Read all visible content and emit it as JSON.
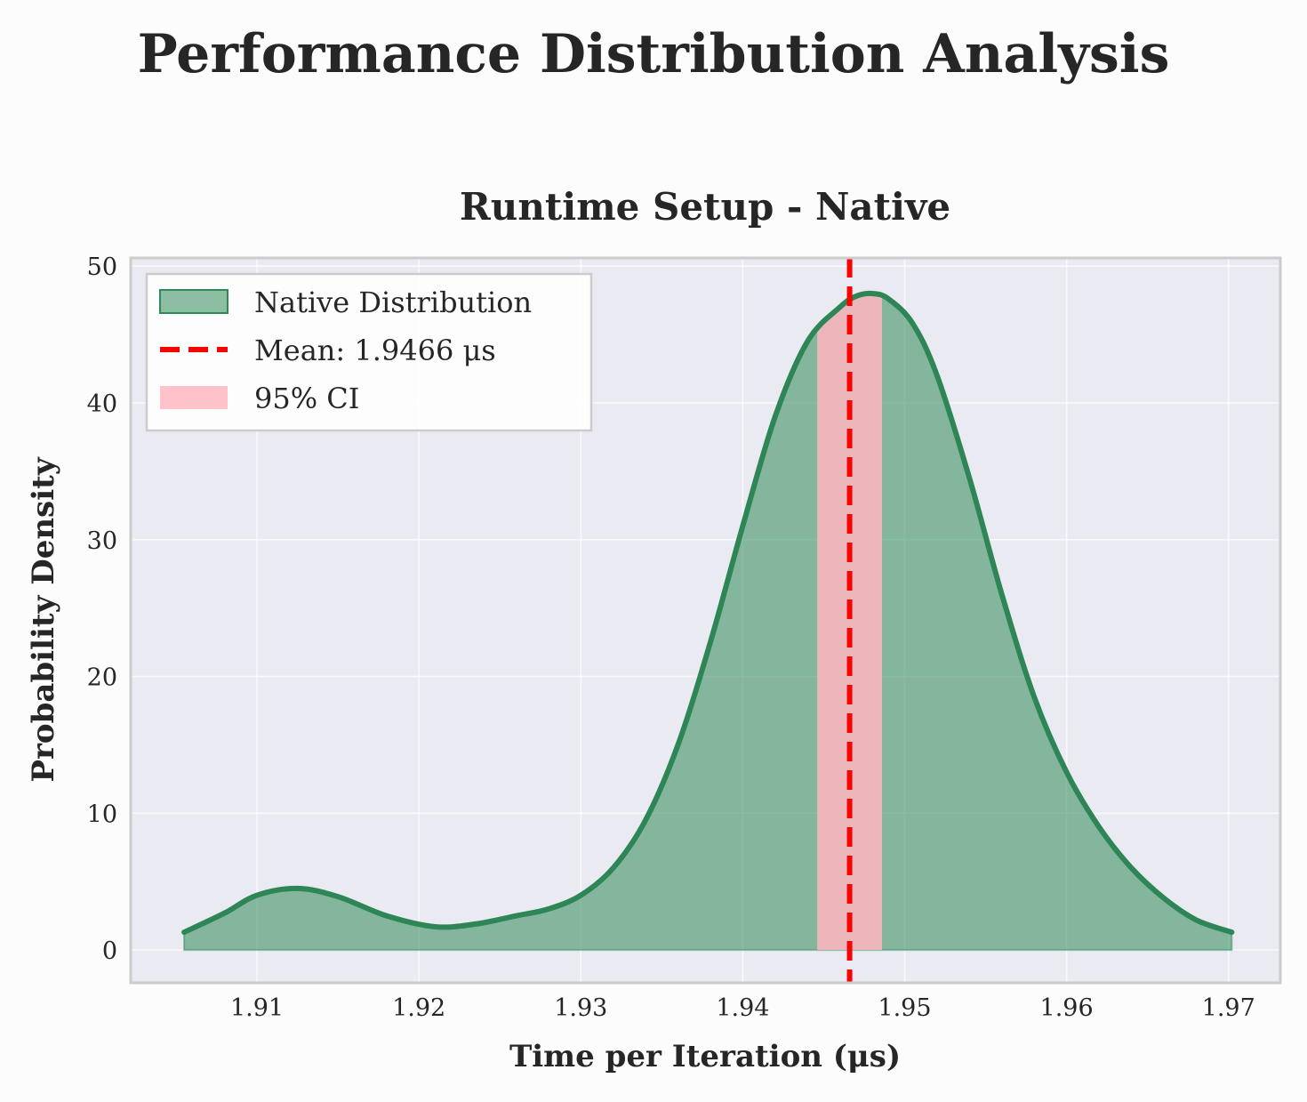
{
  "figure": {
    "suptitle": "Performance Distribution Analysis"
  },
  "chart_data": {
    "type": "area",
    "title": "Runtime Setup - Native",
    "xlabel": "Time per Iteration (μs)",
    "ylabel": "Probability Density",
    "xlim": [
      1.9022,
      1.9732
    ],
    "ylim": [
      -2.4,
      50.6
    ],
    "x_ticks": [
      1.91,
      1.92,
      1.93,
      1.94,
      1.95,
      1.96,
      1.97
    ],
    "x_tick_labels": [
      "1.91",
      "1.92",
      "1.93",
      "1.94",
      "1.95",
      "1.96",
      "1.97"
    ],
    "y_ticks": [
      0,
      10,
      20,
      30,
      40,
      50
    ],
    "y_tick_labels": [
      "0",
      "10",
      "20",
      "30",
      "40",
      "50"
    ],
    "grid": true,
    "legend_position": "top-left",
    "series": [
      {
        "name": "Native Distribution",
        "type": "kde-area",
        "color": "#2e8555",
        "fill_color": "#2e8b57",
        "x": [
          1.9055,
          1.908,
          1.91,
          1.9125,
          1.915,
          1.918,
          1.921,
          1.9235,
          1.926,
          1.928,
          1.93,
          1.932,
          1.934,
          1.936,
          1.938,
          1.94,
          1.942,
          1.944,
          1.946,
          1.947,
          1.948,
          1.949,
          1.9505,
          1.952,
          1.954,
          1.956,
          1.958,
          1.96,
          1.962,
          1.964,
          1.966,
          1.968,
          1.9702
        ],
        "y": [
          1.3,
          2.7,
          4.0,
          4.5,
          3.9,
          2.5,
          1.7,
          1.9,
          2.5,
          3.0,
          4.0,
          6.0,
          9.5,
          15.0,
          22.5,
          31.0,
          39.0,
          44.5,
          47.0,
          47.8,
          48.0,
          47.6,
          45.8,
          42.0,
          34.5,
          26.0,
          18.5,
          13.0,
          9.0,
          6.0,
          3.8,
          2.2,
          1.3
        ]
      }
    ],
    "mean": {
      "value": 1.9466,
      "label": "Mean: 1.9466 μs",
      "color": "#ff0000"
    },
    "ci": {
      "lower": 1.9446,
      "upper": 1.9486,
      "label": "95% CI",
      "color": "#ffb6c1"
    },
    "legend": [
      {
        "label": "Native Distribution",
        "kind": "patch"
      },
      {
        "label": "Mean: 1.9466 μs",
        "kind": "dashed-line"
      },
      {
        "label": "95% CI",
        "kind": "patch-ci"
      }
    ]
  }
}
